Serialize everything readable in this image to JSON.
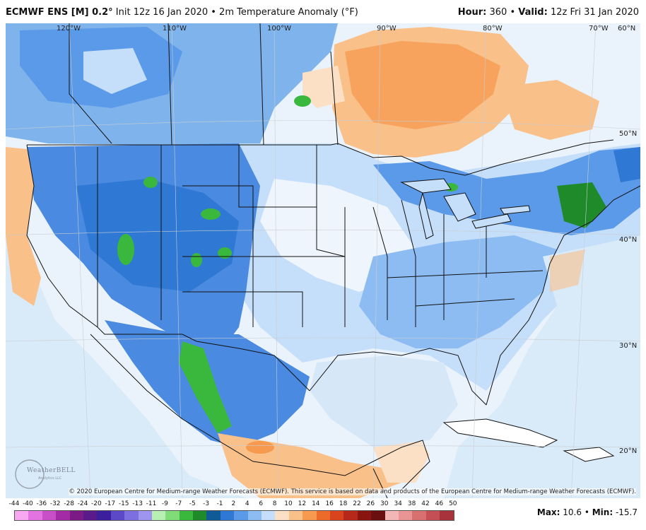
{
  "header": {
    "model": "ECMWF ENS [M] 0.2",
    "degree": "°",
    "init": " Init 12z 16 Jan 2020 • 2m Temperature Anomaly (°F)",
    "hour_label": "Hour:",
    "hour_value": " 360 • ",
    "valid_label": "Valid:",
    "valid_value": " 12z Fri 31 Jan 2020"
  },
  "lon_labels": [
    "120°W",
    "110°W",
    "100°W",
    "90°W",
    "80°W",
    "70°W",
    "60°N"
  ],
  "lat_labels": [
    "50°N",
    "40°N",
    "30°N",
    "20°N"
  ],
  "credit": "© 2020 European Centre for Medium-range Weather Forecasts (ECMWF). This service is based on data and products of the European Centre for Medium-range Weather Forecasts (ECMWF).",
  "logo": {
    "name": "WeatherBELL",
    "sub": "Analytics LLC"
  },
  "colorbar": {
    "labels": [
      "-44",
      "-40",
      "-36",
      "-32",
      "-28",
      "-24",
      "-20",
      "-17",
      "-15",
      "-13",
      "-11",
      "-9",
      "-7",
      "-5",
      "-3",
      "-1",
      "2",
      "4",
      "6",
      "8",
      "10",
      "12",
      "14",
      "16",
      "18",
      "22",
      "26",
      "30",
      "34",
      "38",
      "42",
      "46",
      "50"
    ],
    "colors": [
      "#f7a8f0",
      "#e373e0",
      "#c94fc9",
      "#a32ba6",
      "#7b1c86",
      "#5a1a8a",
      "#3b1f9c",
      "#5b49c8",
      "#7e6fe0",
      "#9d95ee",
      "#b7f0b2",
      "#7fdc78",
      "#39b83d",
      "#1f8a2a",
      "#0f5a97",
      "#2f78d4",
      "#5b9ae8",
      "#8cbcf2",
      "#c5def9",
      "#fbe0c5",
      "#f9c08a",
      "#f59a4e",
      "#ec6b2a",
      "#d9441c",
      "#b8281a",
      "#8a1410",
      "#6b1010",
      "#f3b6b6",
      "#e99595",
      "#d97070",
      "#c44f55",
      "#a8333c"
    ],
    "max_label": "Max:",
    "max_value": " 10.6 • ",
    "min_label": "Min:",
    "min_value": " -15.7"
  },
  "colors": {
    "cold_deep": "#1f8a2a",
    "cold": "#2f78d4",
    "cool": "#8cbcf2",
    "neutral": "#eaf3fb",
    "warm": "#f9c08a",
    "warmer": "#f59a4e",
    "hot": "#ec6b2a"
  }
}
